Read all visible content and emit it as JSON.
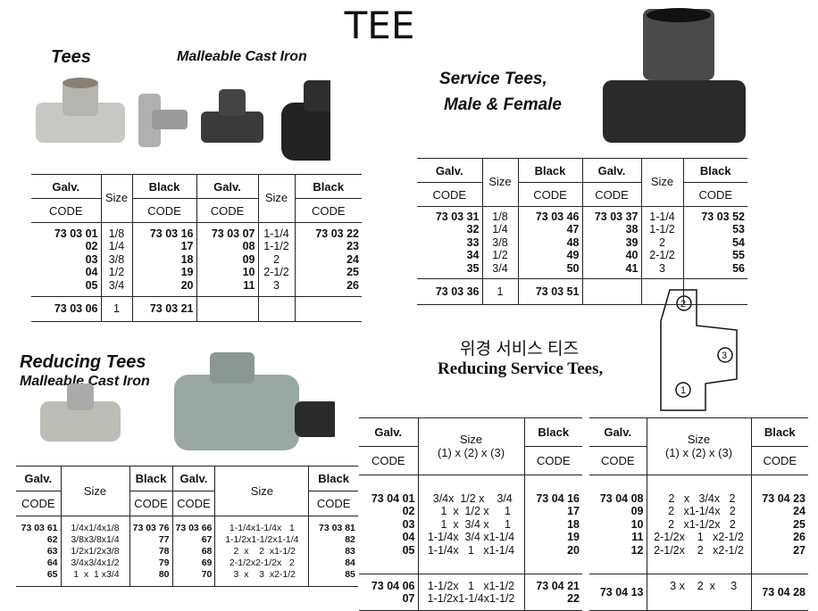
{
  "title": "TEE",
  "tees": {
    "heading": "Tees",
    "subheading": "Malleable Cast Iron"
  },
  "service": {
    "heading_line1": "Service Tees,",
    "heading_line2": "Male & Female"
  },
  "reducing": {
    "heading": "Reducing Tees",
    "subheading": "Malleable Cast Iron"
  },
  "reducing_service": {
    "korean": "위경 서비스 티즈",
    "heading": "Reducing Service Tees,"
  },
  "diagram_labels": [
    "2",
    "3",
    "1"
  ],
  "table_tees": {
    "headers": {
      "galv": "Galv.",
      "black": "Black",
      "code": "CODE",
      "size": "Size"
    },
    "rows": [
      [
        "73 03 01\n02\n03\n04\n05",
        "1/8\n1/4\n3/8\n1/2\n3/4",
        "73 03 16\n17\n18\n19\n20",
        "73 03 07\n08\n09\n10\n11",
        "1-1/4\n1-1/2\n2\n2-1/2\n3",
        "73 03 22\n23\n24\n25\n26"
      ],
      [
        "73 03 06",
        "1",
        "73 03 21"
      ]
    ]
  },
  "table_service": {
    "headers": {
      "galv": "Galv.",
      "black": "Black",
      "code": "CODE",
      "size": "Size"
    },
    "rows": [
      [
        "73 03 31\n32\n33\n34\n35",
        "1/8\n1/4\n3/8\n1/2\n3/4",
        "73 03 46\n47\n48\n49\n50",
        "73 03 37\n38\n39\n40\n41",
        "1-1/4\n1-1/2\n2\n2-1/2\n3",
        "73 03 52\n53\n54\n55\n56"
      ],
      [
        "73 03 36",
        "1",
        "73 03 51"
      ]
    ]
  },
  "table_reducing": {
    "headers": {
      "galv": "Galv.",
      "black": "Black",
      "code": "CODE",
      "size": "Size"
    },
    "rows": [
      [
        "73 03 61\n62\n63\n64\n65",
        "1/4x1/4x1/8\n3/8x3/8x1/4\n1/2x1/2x3/8\n3/4x3/4x1/2\n 1  x  1 x3/4",
        "73 03 76\n77\n78\n79\n80",
        "73 03 66\n67\n68\n69\n70",
        "1-1/4x1-1/4x   1\n1-1/2x1-1/2x1-1/4\n  2  x    2  x1-1/2\n2-1/2x2-1/2x   2\n  3  x    3  x2-1/2",
        "73 03 81\n82\n83\n84\n85"
      ]
    ]
  },
  "table_rs1": {
    "headers": {
      "galv": "Galv.",
      "black": "Black",
      "code": "CODE",
      "size": "Size\n(1) x (2) x (3)"
    },
    "rows": [
      [
        "73 04 01\n02\n03\n04\n05",
        " 3/4x  1/2 x    3/4\n   1  x  1/2 x     1\n   1  x  3/4 x     1\n1-1/4x  3/4 x1-1/4\n1-1/4x   1   x1-1/4",
        "73 04 16\n17\n18\n19\n20"
      ],
      [
        "73 04 06\n07",
        "1-1/2x   1   x1-1/2\n1-1/2x1-1/4x1-1/2",
        "73 04 21\n22"
      ]
    ]
  },
  "table_rs2": {
    "headers": {
      "galv": "Galv.",
      "black": "Black",
      "code": "CODE",
      "size": "Size\n(1) x (2) x (3)"
    },
    "rows": [
      [
        "73 04 08\n09\n10\n11\n12",
        "  2   x   3/4x   2\n  2   x1-1/4x   2\n  2   x1-1/2x   2\n2-1/2x    1   x2-1/2\n2-1/2x    2   x2-1/2",
        "73 04 23\n24\n25\n26\n27"
      ],
      [
        "73 04 13",
        "   3 x    2  x     3\n ",
        "73 04 28"
      ]
    ]
  }
}
